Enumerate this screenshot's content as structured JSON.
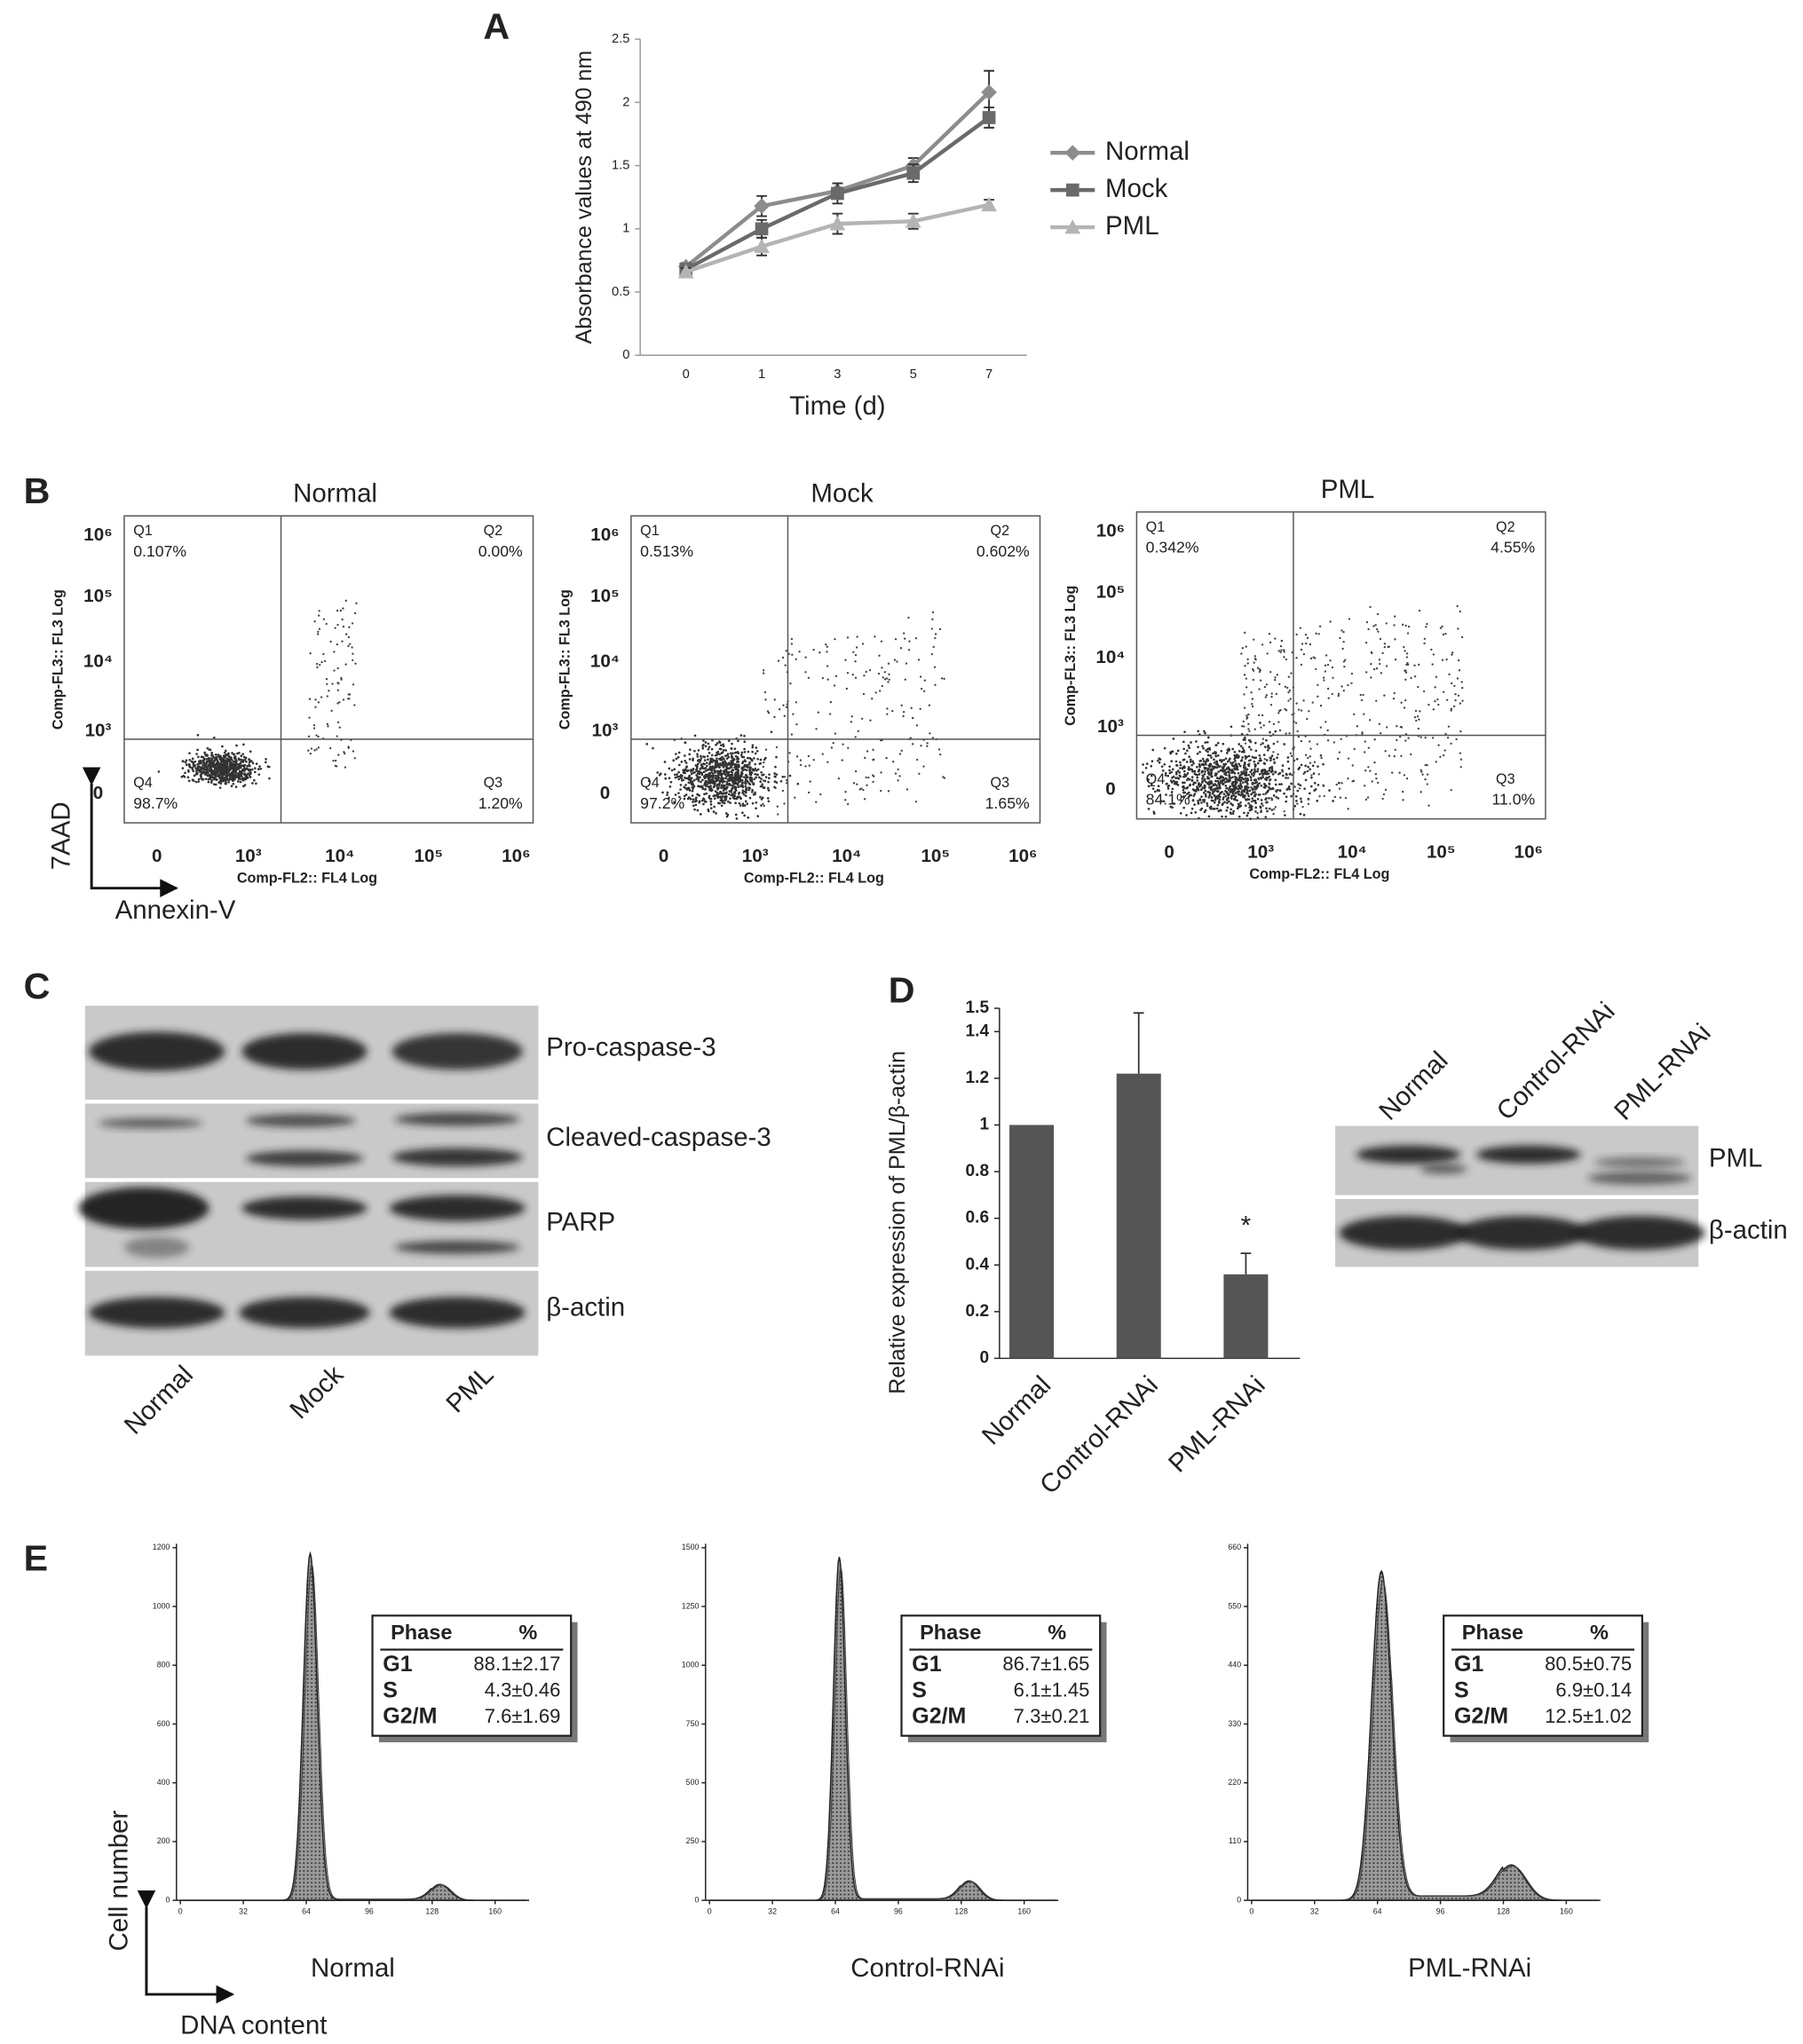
{
  "panel_labels": [
    "A",
    "B",
    "C",
    "D",
    "E"
  ],
  "chart_data": [
    {
      "type": "line",
      "y_label": "Absorbance values at 490 nm",
      "x_label": "Time (d)",
      "categories": [
        "0",
        "1",
        "3",
        "5",
        "7"
      ],
      "ylim": [
        0,
        2.5
      ],
      "yticks": [
        0,
        0.5,
        1,
        1.5,
        2,
        2.5
      ],
      "legend": "right",
      "series": [
        {
          "name": "Normal",
          "color": "#8c8c8c",
          "marker": "diamond",
          "values": [
            0.7,
            1.18,
            1.3,
            1.5,
            2.08
          ],
          "errors": [
            0.03,
            0.08,
            0.06,
            0.06,
            0.17
          ]
        },
        {
          "name": "Mock",
          "color": "#6a6a6a",
          "marker": "square",
          "values": [
            0.68,
            1.0,
            1.28,
            1.44,
            1.88
          ],
          "errors": [
            0.03,
            0.07,
            0.08,
            0.07,
            0.08
          ]
        },
        {
          "name": "PML",
          "color": "#b4b4b4",
          "marker": "triangle",
          "values": [
            0.66,
            0.86,
            1.04,
            1.06,
            1.19
          ],
          "errors": [
            0.03,
            0.07,
            0.08,
            0.06,
            0.04
          ]
        }
      ]
    },
    {
      "type": "bar",
      "y_label": "Relative expression of PML/β-actin",
      "categories": [
        "Normal",
        "Control-RNAi",
        "PML-RNAi"
      ],
      "values": [
        1,
        1.22,
        0.36
      ],
      "errors": [
        null,
        0.26,
        0.09
      ],
      "color": "#555555",
      "annotations": [
        null,
        null,
        "*"
      ],
      "ylim": [
        0,
        1.5
      ],
      "yticks": [
        0,
        0.2,
        0.4,
        0.6,
        0.8,
        1,
        1.2,
        1.4,
        1.5
      ]
    }
  ],
  "flow_cytometry": {
    "y_axis_label": "7AAD",
    "x_axis_label": "Annexin-V",
    "plots": [
      {
        "title": "Normal",
        "y_label": "Comp-FL3:: FL3 Log",
        "x_label": "Comp-FL2:: FL4 Log",
        "quadrants": [
          {
            "name": "Q1",
            "value": "0.107%"
          },
          {
            "name": "Q2",
            "value": "0.00%"
          },
          {
            "name": "Q3",
            "value": "1.20%"
          },
          {
            "name": "Q4",
            "value": "98.7%"
          }
        ],
        "xticks": [
          "0",
          "10³",
          "10⁴",
          "10⁵",
          "10⁶"
        ],
        "yticks": [
          "0",
          "10³",
          "10⁴",
          "10⁵",
          "10⁶"
        ]
      },
      {
        "title": "Mock",
        "y_label": "Comp-FL3:: FL3 Log",
        "x_label": "Comp-FL2:: FL4 Log",
        "quadrants": [
          {
            "name": "Q1",
            "value": "0.513%"
          },
          {
            "name": "Q2",
            "value": "0.602%"
          },
          {
            "name": "Q3",
            "value": "1.65%"
          },
          {
            "name": "Q4",
            "value": "97.2%"
          }
        ],
        "xticks": [
          "0",
          "10³",
          "10⁴",
          "10⁵",
          "10⁶"
        ],
        "yticks": [
          "0",
          "10³",
          "10⁴",
          "10⁵",
          "10⁶"
        ]
      },
      {
        "title": "PML",
        "y_label": "Comp-FL3:: FL3 Log",
        "x_label": "Comp-FL2:: FL4 Log",
        "quadrants": [
          {
            "name": "Q1",
            "value": "0.342%"
          },
          {
            "name": "Q2",
            "value": "4.55%"
          },
          {
            "name": "Q3",
            "value": "11.0%"
          },
          {
            "name": "Q4",
            "value": "84.1%"
          }
        ],
        "xticks": [
          "0",
          "10³",
          "10⁴",
          "10⁵",
          "10⁶"
        ],
        "yticks": [
          "0",
          "10³",
          "10⁴",
          "10⁵",
          "10⁶"
        ]
      }
    ]
  },
  "western_blot_c": {
    "bands": [
      "Pro-caspase-3",
      "Cleaved-caspase-3",
      "PARP",
      "β-actin"
    ],
    "lanes": [
      "Normal",
      "Mock",
      "PML"
    ]
  },
  "western_blot_d": {
    "bands": [
      "PML",
      "β-actin"
    ],
    "lanes": [
      "Normal",
      "Control-RNAi",
      "PML-RNAi"
    ]
  },
  "cell_cycle": {
    "y_axis_label": "Cell number",
    "x_axis_label": "DNA content",
    "plots": [
      {
        "title": "Normal",
        "xticks": [
          0,
          32,
          64,
          96,
          128,
          160
        ],
        "yticks": [
          0,
          200,
          400,
          600,
          800,
          1000,
          1200
        ],
        "table": {
          "header": [
            "Phase",
            "%"
          ],
          "rows": [
            [
              "G1",
              "88.1±2.17"
            ],
            [
              "S",
              "4.3±0.46"
            ],
            [
              "G2/M",
              "7.6±1.69"
            ]
          ]
        }
      },
      {
        "title": "Control-RNAi",
        "xticks": [
          0,
          32,
          64,
          96,
          128,
          160
        ],
        "yticks": [
          0,
          250,
          500,
          750,
          1000,
          1250,
          1500
        ],
        "table": {
          "header": [
            "Phase",
            "%"
          ],
          "rows": [
            [
              "G1",
              "86.7±1.65"
            ],
            [
              "S",
              "6.1±1.45"
            ],
            [
              "G2/M",
              "7.3±0.21"
            ]
          ]
        }
      },
      {
        "title": "PML-RNAi",
        "xticks": [
          0,
          32,
          64,
          96,
          128,
          160
        ],
        "yticks": [
          0,
          110,
          220,
          330,
          440,
          550,
          660
        ],
        "table": {
          "header": [
            "Phase",
            "%"
          ],
          "rows": [
            [
              "G1",
              "80.5±0.75"
            ],
            [
              "S",
              "6.9±0.14"
            ],
            [
              "G2/M",
              "12.5±1.02"
            ]
          ]
        }
      }
    ]
  }
}
